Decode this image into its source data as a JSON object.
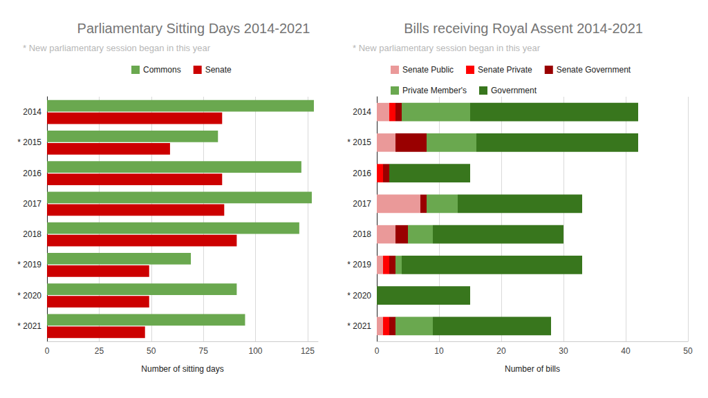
{
  "chart_data": [
    {
      "type": "bar",
      "title": "Parliamentary Sitting Days 2014-2021",
      "subtitle": "* New parliamentary session began in this year",
      "xlabel": "Number of sitting days",
      "orientation": "horizontal",
      "stacked": false,
      "grid": true,
      "legend": "top",
      "categories": [
        "2014",
        "* 2015",
        "2016",
        "2017",
        "2018",
        "* 2019",
        "* 2020",
        "* 2021"
      ],
      "series": [
        {
          "name": "Commons",
          "color": "#6aa84f",
          "values": [
            128,
            82,
            122,
            127,
            121,
            69,
            91,
            95
          ]
        },
        {
          "name": "Senate",
          "color": "#cc0000",
          "values": [
            84,
            59,
            84,
            85,
            91,
            49,
            49,
            47
          ]
        }
      ],
      "xlim": [
        0,
        130
      ],
      "xticks": [
        0,
        25,
        50,
        75,
        100,
        125
      ]
    },
    {
      "type": "bar",
      "title": "Bills receiving Royal Assent 2014-2021",
      "subtitle": "* New parliamentary session began in this year",
      "xlabel": "Number of bills",
      "orientation": "horizontal",
      "stacked": true,
      "grid": true,
      "legend": "top",
      "categories": [
        "2014",
        "* 2015",
        "2016",
        "2017",
        "2018",
        "* 2019",
        "* 2020",
        "* 2021"
      ],
      "series": [
        {
          "name": "Senate Public",
          "color": "#ea9999",
          "values": [
            2,
            3,
            0,
            7,
            3,
            1,
            0,
            1
          ]
        },
        {
          "name": "Senate Private",
          "color": "#ff0000",
          "values": [
            1,
            0,
            1,
            0,
            0,
            1,
            0,
            1
          ]
        },
        {
          "name": "Senate Government",
          "color": "#990000",
          "values": [
            1,
            5,
            1,
            1,
            2,
            1,
            0,
            1
          ]
        },
        {
          "name": "Private Member's",
          "color": "#6aa84f",
          "values": [
            11,
            8,
            0,
            5,
            4,
            1,
            0,
            6
          ]
        },
        {
          "name": "Government",
          "color": "#38761d",
          "values": [
            27,
            26,
            13,
            20,
            21,
            29,
            15,
            19
          ]
        }
      ],
      "xlim": [
        0,
        50
      ],
      "xticks": [
        0,
        10,
        20,
        30,
        40,
        50
      ]
    }
  ]
}
